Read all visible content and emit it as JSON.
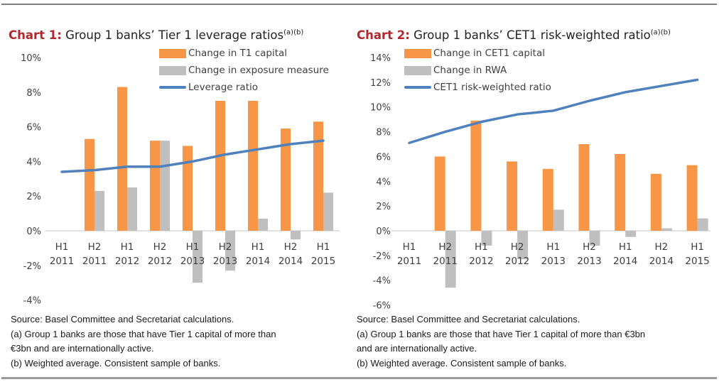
{
  "colors": {
    "capital": "#f79646",
    "exposure": "#bfbfbf",
    "ratio": "#4f81bd",
    "title_label": "#b1272d",
    "axis": "#d9d9d9"
  },
  "chart_data": [
    {
      "type": "bar",
      "title_label": "Chart 1:",
      "title_text": " Group 1 banks’ Tier 1 leverage ratios",
      "title_sup": "(a)(b)",
      "categories": [
        [
          "H1",
          "2011"
        ],
        [
          "H2",
          "2011"
        ],
        [
          "H1",
          "2012"
        ],
        [
          "H2",
          "2012"
        ],
        [
          "H1",
          "2013"
        ],
        [
          "H2",
          "2013"
        ],
        [
          "H1",
          "2014"
        ],
        [
          "H2",
          "2014"
        ],
        [
          "H1",
          "2015"
        ]
      ],
      "ylim": [
        -4,
        10
      ],
      "yticks": [
        10,
        8,
        6,
        4,
        2,
        0,
        -2,
        -4
      ],
      "ytick_labels": [
        "10%",
        "8%",
        "6%",
        "4%",
        "2%",
        "0%",
        "-2%",
        "-4%"
      ],
      "series": [
        {
          "name": "Change in T1 capital",
          "kind": "bar",
          "values": [
            null,
            5.3,
            8.3,
            5.2,
            4.9,
            7.5,
            7.5,
            5.9,
            6.3
          ]
        },
        {
          "name": "Change in exposure measure",
          "kind": "bar",
          "values": [
            null,
            2.3,
            2.5,
            5.2,
            -3.0,
            -2.3,
            0.7,
            -0.5,
            2.2
          ]
        },
        {
          "name": "Leverage ratio",
          "kind": "line",
          "values": [
            3.4,
            3.5,
            3.7,
            3.7,
            4.0,
            4.4,
            4.7,
            5.0,
            5.2
          ]
        }
      ],
      "legend": [
        "Change in T1 capital",
        "Change in exposure measure",
        "Leverage ratio"
      ],
      "notes": [
        "Source: Basel Committee and Secretariat calculations.",
        "(a) Group 1 banks are those that have Tier 1 capital of more than\n€3bn and are internationally active.",
        "(b) Weighted average. Consistent sample of banks."
      ]
    },
    {
      "type": "bar",
      "title_label": "Chart 2:",
      "title_text": " Group 1 banks’ CET1 risk-weighted ratio",
      "title_sup": "(a)(b)",
      "categories": [
        [
          "H1",
          "2011"
        ],
        [
          "H2",
          "2011"
        ],
        [
          "H1",
          "2012"
        ],
        [
          "H2",
          "2012"
        ],
        [
          "H1",
          "2013"
        ],
        [
          "H2",
          "2013"
        ],
        [
          "H1",
          "2014"
        ],
        [
          "H2",
          "2014"
        ],
        [
          "H1",
          "2015"
        ]
      ],
      "ylim": [
        -6,
        14
      ],
      "yticks": [
        14,
        12,
        10,
        8,
        6,
        4,
        2,
        0,
        -2,
        -4,
        -6
      ],
      "ytick_labels": [
        "14%",
        "12%",
        "10%",
        "8%",
        "6%",
        "4%",
        "2%",
        "0%",
        "-2%",
        "-4%",
        "-6%"
      ],
      "series": [
        {
          "name": "Change in CET1 capital",
          "kind": "bar",
          "values": [
            null,
            6.0,
            8.9,
            5.6,
            5.0,
            7.0,
            6.2,
            4.6,
            5.3
          ]
        },
        {
          "name": "Change in RWA",
          "kind": "bar",
          "values": [
            null,
            -4.6,
            -1.2,
            -2.3,
            1.7,
            -1.2,
            -0.5,
            0.2,
            1.0
          ]
        },
        {
          "name": "CET1 risk-weighted ratio",
          "kind": "line",
          "values": [
            7.1,
            8.0,
            8.8,
            9.4,
            9.7,
            10.5,
            11.2,
            11.7,
            12.2
          ]
        }
      ],
      "legend": [
        "Change in CET1 capital",
        "Change in RWA",
        "CET1 risk-weighted ratio"
      ],
      "notes": [
        "Source: Basel Committee and Secretariat calculations.",
        "(a) Group 1 banks are those that have Tier 1 capital of more than €3bn\nand are internationally active.",
        "(b) Weighted average. Consistent sample of banks."
      ]
    }
  ]
}
